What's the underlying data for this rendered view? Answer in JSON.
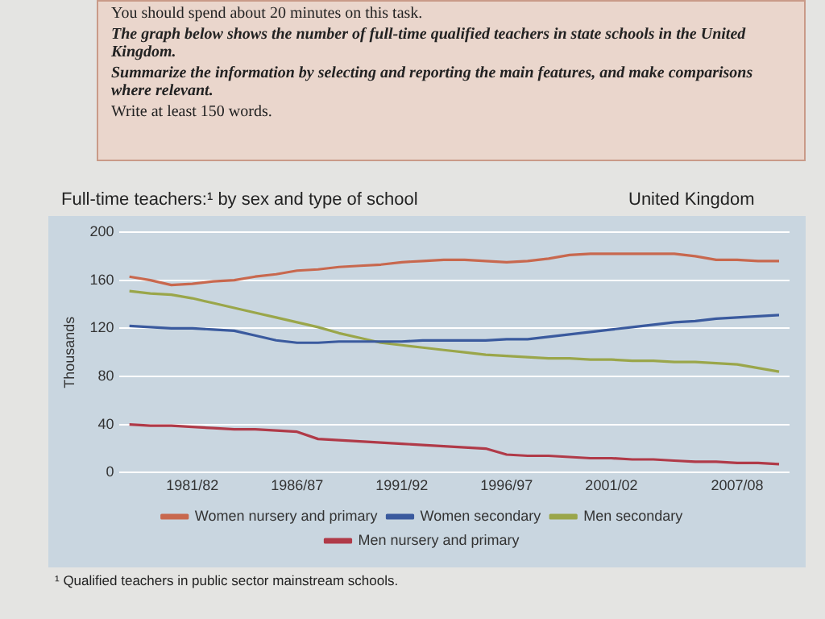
{
  "chart_data": {
    "type": "line",
    "title": "Full-time teachers:¹ by sex and type of school",
    "subtitle": "United Kingdom",
    "ylabel": "Thousands",
    "annotations": [
      "You should spend about 20 minutes on this task.",
      "The graph below shows the number of full-time qualified teachers in state schools in the United Kingdom.",
      "Summarize the information by selecting and reporting the main features, and make comparisons where relevant.",
      "Write at least 150 words.",
      "¹ Qualified teachers in public sector mainstream schools."
    ],
    "categories": [
      null,
      null,
      null,
      "1981/82",
      null,
      null,
      null,
      null,
      "1986/87",
      null,
      null,
      null,
      null,
      "1991/92",
      null,
      null,
      null,
      null,
      "1996/97",
      null,
      null,
      null,
      null,
      "2001/02",
      null,
      null,
      null,
      null,
      null,
      "2007/08",
      null,
      null
    ],
    "ylim": [
      0,
      200
    ],
    "yticks": [
      0,
      40,
      80,
      120,
      160,
      200
    ],
    "grid": "y",
    "legend": "bottom",
    "marker": "none",
    "line_style": "solid",
    "series": [
      {
        "name": "Women nursery and primary",
        "color": "#c8684e",
        "values": [
          163,
          160,
          156,
          157,
          159,
          160,
          163,
          165,
          168,
          169,
          171,
          172,
          173,
          175,
          176,
          177,
          177,
          176,
          175,
          176,
          178,
          181,
          182,
          182,
          182,
          182,
          182,
          180,
          177,
          177,
          176,
          176
        ]
      },
      {
        "name": "Women secondary",
        "color": "#3a5a9e",
        "values": [
          122,
          121,
          120,
          120,
          119,
          118,
          114,
          110,
          108,
          108,
          109,
          109,
          109,
          109,
          110,
          110,
          110,
          110,
          111,
          111,
          113,
          115,
          117,
          119,
          121,
          123,
          125,
          126,
          128,
          129,
          130,
          131
        ]
      },
      {
        "name": "Men secondary",
        "color": "#9aa64a",
        "values": [
          151,
          149,
          148,
          145,
          141,
          137,
          133,
          129,
          125,
          121,
          116,
          112,
          108,
          106,
          104,
          102,
          100,
          98,
          97,
          96,
          95,
          95,
          94,
          94,
          93,
          93,
          92,
          92,
          91,
          90,
          87,
          84
        ]
      },
      {
        "name": "Men nursery and primary",
        "color": "#b03a48",
        "values": [
          40,
          39,
          39,
          38,
          37,
          36,
          36,
          35,
          34,
          28,
          27,
          26,
          25,
          24,
          23,
          22,
          21,
          20,
          15,
          14,
          14,
          13,
          12,
          12,
          11,
          11,
          10,
          9,
          9,
          8,
          8,
          7
        ]
      }
    ]
  }
}
